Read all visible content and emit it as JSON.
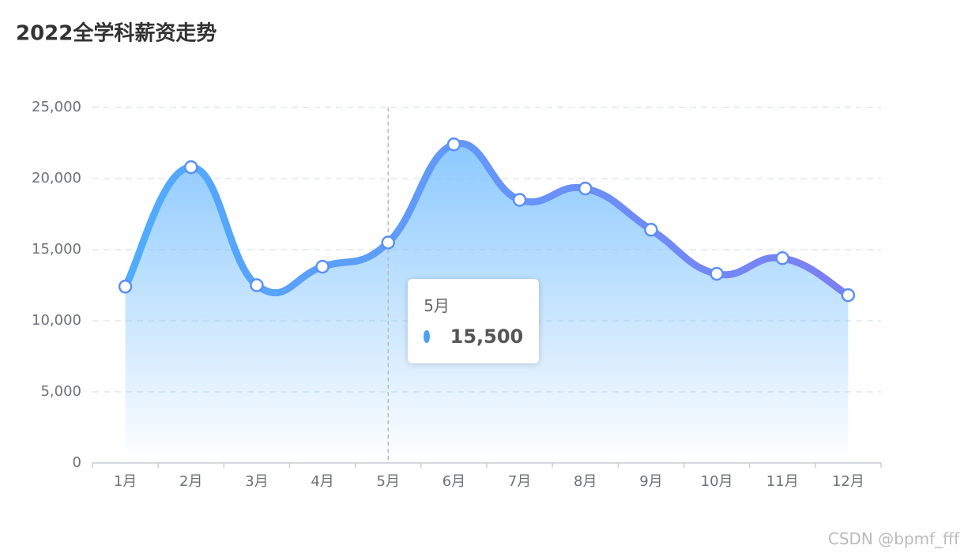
{
  "chart_data": {
    "type": "line",
    "title": "2022全学科薪资走势",
    "categories": [
      "1月",
      "2月",
      "3月",
      "4月",
      "5月",
      "6月",
      "7月",
      "8月",
      "9月",
      "10月",
      "11月",
      "12月"
    ],
    "values": [
      12400,
      20800,
      12500,
      13800,
      15500,
      22400,
      18500,
      19300,
      16400,
      13300,
      14400,
      11800
    ],
    "value_labels": [
      null,
      null,
      null,
      null,
      "15,500",
      null,
      null,
      null,
      null,
      null,
      null,
      null
    ],
    "line_colors": [
      "#4facfe",
      "#7b7ff2"
    ],
    "area_color": "#7fc3ff",
    "point_stroke": "#5b8ff9",
    "tooltip_dot_color": "#4c9ff3",
    "smooth": true,
    "grid": true,
    "ylim": [
      0,
      25000
    ],
    "yticks": [
      0,
      {
        "value": 5000,
        "label": "5,000"
      },
      {
        "value": 10000,
        "label": "10,000"
      },
      {
        "value": 15000,
        "label": "15,000"
      },
      {
        "value": 20000,
        "label": "20,000"
      },
      {
        "value": 25000,
        "label": "25,000"
      }
    ]
  },
  "watermark": "CSDN @bpmf_fff"
}
